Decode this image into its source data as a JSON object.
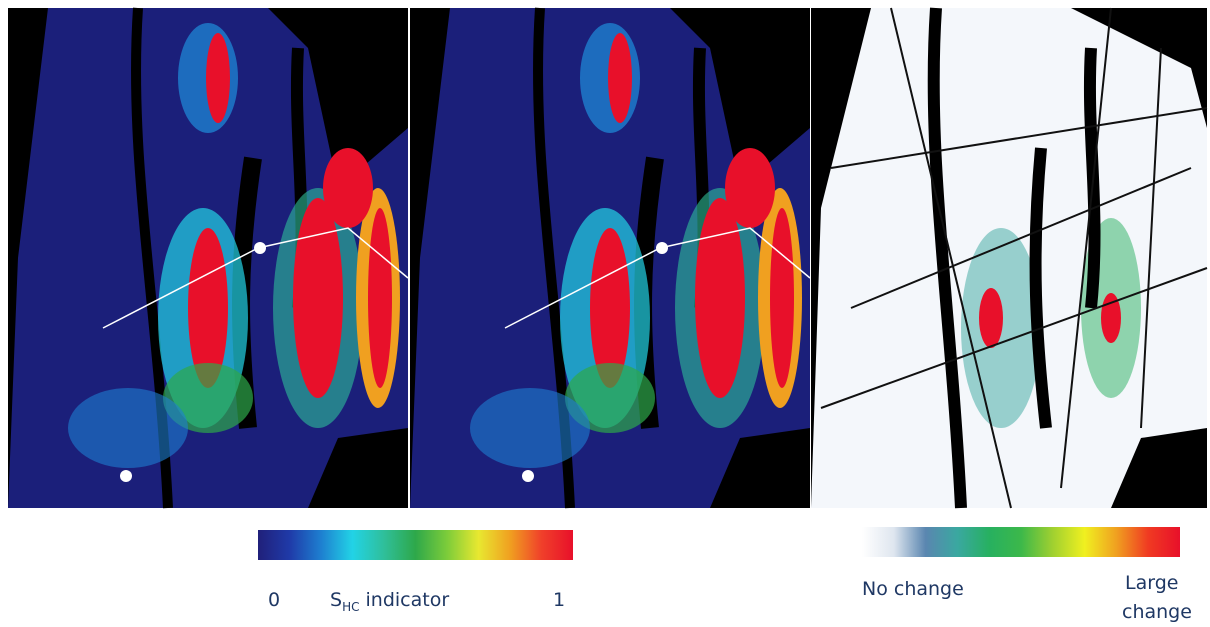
{
  "colorbars": [
    {
      "colors": [
        "#20207a",
        "#1f3aa8",
        "#1e7fd0",
        "#22d3e6",
        "#2fbf9a",
        "#2ea84a",
        "#7ccc3a",
        "#e8e830",
        "#f0a020",
        "#f0402a",
        "#e8102a"
      ],
      "min_label": "0",
      "name": "S",
      "name_sub": "HC",
      "name_rest": " indicator",
      "max_label": "1"
    },
    {
      "colors": [
        "#ffffff",
        "#dfe6ef",
        "#5a86b0",
        "#3aa8a0",
        "#27b060",
        "#3cb84a",
        "#a0d030",
        "#f0f020",
        "#f0a020",
        "#f03a22",
        "#e8102a"
      ],
      "min_label": "No change",
      "max_label_1": "Large",
      "max_label_2": "change"
    }
  ]
}
